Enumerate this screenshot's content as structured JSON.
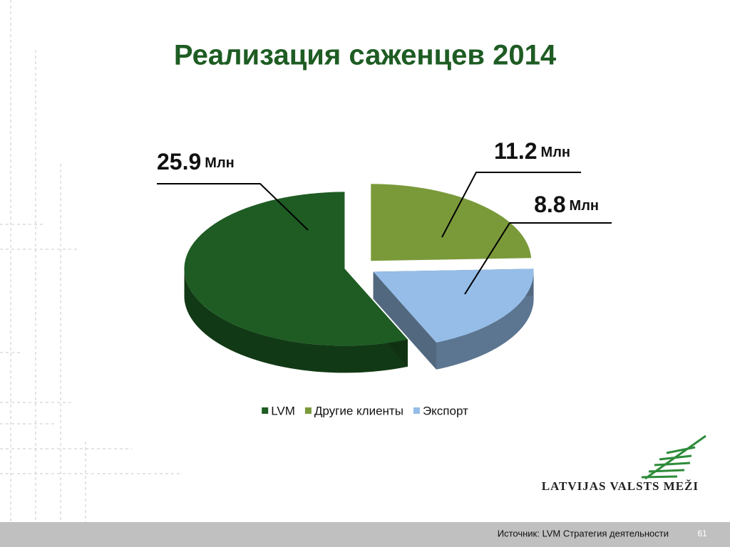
{
  "chart_data": {
    "type": "pie3d",
    "title": "Реализация саженцев 2014",
    "categories": [
      "LVM",
      "Другие клиенты",
      "Экспорт"
    ],
    "values": [
      25.9,
      11.2,
      8.8
    ],
    "value_unit": "Млн",
    "colors": [
      "#1e5c23",
      "#7a9a3a",
      "#95bde8"
    ],
    "legend": "bottom"
  },
  "logo": "LATVIJAS VALSTS MEŽI",
  "footer": {
    "source": "Источник: LVM Стратегия деятельности",
    "page": "61"
  }
}
